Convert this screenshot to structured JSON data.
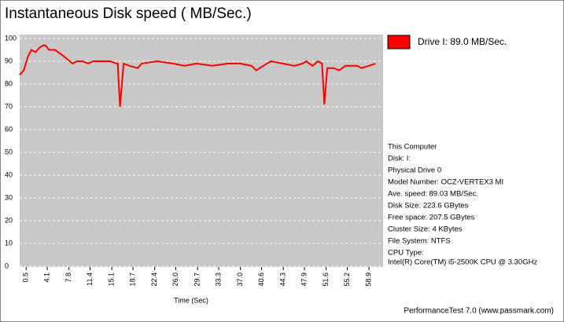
{
  "chart_data": {
    "type": "line",
    "title": "Instantaneous Disk speed ( MB/Sec.)",
    "x_label": "Time (Sec)",
    "footer": "PerformanceTest 7.0 (www.passmark.com)",
    "info": [
      "This Computer",
      "Disk: I:",
      "Physical Drive 0",
      "Model Number: OCZ-VERTEX3 MI",
      "Ave. speed: 89.03 MB/Sec.",
      "Disk Size: 223.6 GBytes",
      "Free space: 207.5 GBytes",
      "Cluster Size: 4 KBytes",
      "File System: NTFS",
      "CPU Type:",
      "Intel(R) Core(TM) i5-2500K CPU @ 3.30GHz"
    ],
    "x": [
      -0.6,
      0.1,
      0.8,
      1.4,
      2.1,
      2.8,
      3.4,
      3.8,
      4.4,
      5.4,
      6.5,
      7.5,
      8.4,
      9.2,
      10.1,
      11.1,
      11.9,
      13.5,
      14.8,
      15.9,
      16.1,
      16.5,
      17.1,
      18.1,
      19.5,
      20.2,
      22.8,
      25.5,
      27.5,
      29.5,
      32.2,
      34.9,
      36.9,
      38.9,
      39.7,
      40.9,
      42.2,
      44.2,
      46.2,
      47.6,
      48.2,
      49.3,
      50.2,
      50.9,
      51.3,
      51.8,
      52.9,
      53.8,
      54.9,
      56.9,
      57.6,
      58.9,
      60.0
    ],
    "series": [
      {
        "name": "Drive I: 89.0 MB/Sec.",
        "color": "#ff0000",
        "values": [
          84,
          86,
          92,
          95,
          94,
          96,
          97,
          97,
          95,
          95,
          93,
          91,
          89,
          90,
          90,
          89,
          90,
          90,
          90,
          89,
          89,
          70,
          89,
          88,
          87,
          89,
          90,
          89,
          88,
          89,
          88,
          89,
          89,
          88,
          86,
          88,
          90,
          89,
          88,
          89,
          90,
          88,
          90,
          89,
          71,
          87,
          87,
          86,
          88,
          88,
          87,
          88,
          89
        ]
      }
    ],
    "xlim": [
      -0.6,
      61.3
    ],
    "xticks": [
      0.5,
      4.1,
      7.8,
      11.4,
      15.1,
      18.7,
      22.4,
      {
        "value": 26,
        "label": "26.0"
      },
      29.7,
      33.3,
      {
        "value": 37,
        "label": "37.0"
      },
      40.6,
      44.3,
      47.9,
      51.6,
      55.2,
      58.9
    ],
    "ylim": [
      0,
      100
    ],
    "yticks": [
      0,
      10,
      20,
      30,
      40,
      50,
      60,
      70,
      80,
      90,
      100
    ],
    "grid": true
  }
}
